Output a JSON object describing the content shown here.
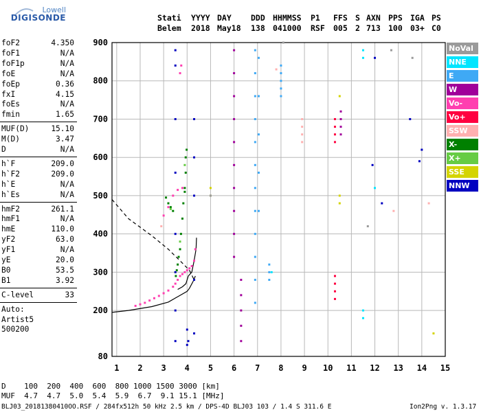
{
  "logo": {
    "top": "Lowell",
    "main": "DIGISONDE"
  },
  "header": {
    "labels": [
      "Stati",
      "YYYY",
      "DAY",
      "DDD",
      "HHMMSS",
      "P1",
      "FFS",
      "S",
      "AXN",
      "PPS",
      "IGA",
      "PS"
    ],
    "values": [
      "Belem",
      "2018",
      "May18",
      "138",
      "041000",
      "RSF",
      "005",
      "2",
      "713",
      "100",
      "03+",
      "C0"
    ]
  },
  "params": {
    "group1": [
      {
        "name": "foF2",
        "value": "4.350"
      },
      {
        "name": "foF1",
        "value": "N/A"
      },
      {
        "name": "foF1p",
        "value": "N/A"
      },
      {
        "name": "foE",
        "value": "N/A"
      },
      {
        "name": "foEp",
        "value": "0.36"
      },
      {
        "name": "fxI",
        "value": "4.15"
      },
      {
        "name": "foEs",
        "value": "N/A"
      },
      {
        "name": "fmin",
        "value": "1.65"
      }
    ],
    "group2": [
      {
        "name": "MUF(D)",
        "value": "15.10"
      },
      {
        "name": "M(D)",
        "value": "3.47"
      },
      {
        "name": "D",
        "value": "N/A"
      }
    ],
    "group3": [
      {
        "name": "h`F",
        "value": "209.0"
      },
      {
        "name": "h`F2",
        "value": "209.0"
      },
      {
        "name": "h`E",
        "value": "N/A"
      },
      {
        "name": "h`Es",
        "value": "N/A"
      }
    ],
    "group4": [
      {
        "name": "hmF2",
        "value": "261.1"
      },
      {
        "name": "hmF1",
        "value": "N/A"
      },
      {
        "name": "hmE",
        "value": "110.0"
      },
      {
        "name": "yF2",
        "value": "63.0"
      },
      {
        "name": "yF1",
        "value": "N/A"
      },
      {
        "name": "yE",
        "value": "20.0"
      },
      {
        "name": "B0",
        "value": "53.5"
      },
      {
        "name": "B1",
        "value": "3.92"
      }
    ],
    "clevel": {
      "name": "C-level",
      "value": "33"
    },
    "auto": [
      "Auto:",
      "Artist5",
      "500200"
    ]
  },
  "legend": [
    {
      "label": "NoVal",
      "color": "#9a9a9a"
    },
    {
      "label": "NNE",
      "color": "#00e5ff"
    },
    {
      "label": "E",
      "color": "#3fa9f5"
    },
    {
      "label": "W",
      "color": "#a0009a"
    },
    {
      "label": "Vo-",
      "color": "#ff3fb0"
    },
    {
      "label": "Vo+",
      "color": "#ff0040"
    },
    {
      "label": "SSW",
      "color": "#ffb0b0"
    },
    {
      "label": "X-",
      "color": "#008000"
    },
    {
      "label": "X+",
      "color": "#66cc44"
    },
    {
      "label": "SSE",
      "color": "#d4d400"
    },
    {
      "label": "NNW",
      "color": "#0000c0"
    }
  ],
  "footer": {
    "d_row": "D    100  200  400  600  800 1000 1500 3000 [km]",
    "muf_row": "MUF  4.7  4.7  5.0  5.4  5.9  6.7  9.1 15.1 [MHz]",
    "info": "BLJ03_20181380410OO.RSF / 284fx512h 50 kHz 2.5 km / DPS-4D BLJ03 103 / 1.4 S 311.6 E",
    "version": "Ion2Png v. 1.3.17"
  },
  "chart_data": {
    "type": "scatter",
    "x_ticks": [
      "1",
      "2",
      "3",
      "4",
      "5",
      "6",
      "7",
      "8",
      "9",
      "10",
      "11",
      "12",
      "13",
      "14",
      "15"
    ],
    "y_ticks": [
      "80",
      "200",
      "300",
      "400",
      "500",
      "600",
      "700",
      "800",
      "900"
    ],
    "xlim": [
      0.8,
      15.0
    ],
    "ylim": [
      80,
      900
    ],
    "grid": true,
    "legend_placement": "right",
    "series": [
      {
        "name": "X-",
        "color": "#008000",
        "x": [
          3.52,
          3.56,
          3.6,
          3.64,
          3.7,
          3.74,
          3.8,
          3.84,
          3.9,
          3.94,
          3.94,
          3.98,
          3.4,
          3.3,
          3.2,
          3.1,
          3.9
        ],
        "y": [
          290,
          305,
          320,
          340,
          360,
          400,
          440,
          480,
          520,
          560,
          600,
          620,
          460,
          470,
          480,
          495,
          510
        ]
      },
      {
        "name": "X+",
        "color": "#66cc44",
        "x": [
          3.5,
          3.7,
          3.9,
          3.3
        ],
        "y": [
          300,
          380,
          580,
          465
        ]
      },
      {
        "name": "Vo-",
        "color": "#ff3fb0",
        "x": [
          1.8,
          2.0,
          2.2,
          2.4,
          2.6,
          2.8,
          3.0,
          3.2,
          3.4,
          3.5,
          3.6,
          3.7,
          3.8,
          3.9,
          4.0,
          4.1,
          4.2,
          4.3,
          4.35,
          3.0,
          3.2,
          3.4,
          3.6,
          3.8,
          3.75,
          3.7
        ],
        "y": [
          212,
          216,
          220,
          226,
          232,
          238,
          245,
          252,
          262,
          270,
          280,
          290,
          295,
          300,
          305,
          310,
          316,
          330,
          360,
          448,
          470,
          500,
          515,
          520,
          840,
          820
        ]
      },
      {
        "name": "Vo+",
        "color": "#ff0040",
        "x": [
          10.3,
          10.3,
          10.3,
          10.3,
          10.3,
          10.3,
          10.3,
          10.3
        ],
        "y": [
          230,
          250,
          270,
          290,
          640,
          660,
          680,
          700
        ]
      },
      {
        "name": "W",
        "color": "#a0009a",
        "x": [
          6.0,
          6.0,
          6.0,
          6.0,
          6.0,
          6.0,
          6.0,
          6.0,
          6.0,
          6.0,
          6.3,
          6.3,
          6.3,
          6.3,
          6.3,
          10.55,
          10.55,
          10.55,
          10.55
        ],
        "y": [
          880,
          820,
          760,
          700,
          640,
          580,
          520,
          460,
          400,
          340,
          280,
          240,
          200,
          160,
          120,
          660,
          680,
          700,
          720
        ]
      },
      {
        "name": "E",
        "color": "#3fa9f5",
        "x": [
          6.9,
          6.9,
          6.9,
          6.9,
          6.9,
          6.9,
          6.9,
          6.9,
          6.9,
          6.9,
          6.9,
          6.9,
          7.05,
          7.05,
          7.05,
          7.05,
          7.05,
          7.5,
          7.5,
          7.5,
          8.0,
          8.0,
          8.0,
          8.0,
          8.0
        ],
        "y": [
          880,
          820,
          760,
          700,
          640,
          580,
          520,
          460,
          400,
          340,
          280,
          220,
          860,
          760,
          660,
          560,
          460,
          280,
          300,
          320,
          760,
          780,
          800,
          820,
          840
        ]
      },
      {
        "name": "NNE",
        "color": "#00e5ff",
        "x": [
          11.5,
          11.5,
          11.5,
          11.5,
          7.6,
          12.0
        ],
        "y": [
          860,
          880,
          200,
          180,
          300,
          520
        ]
      },
      {
        "name": "SSW",
        "color": "#ffb0b0",
        "x": [
          8.9,
          8.9,
          8.9,
          8.9,
          12.8,
          14.3,
          7.8,
          2.9
        ],
        "y": [
          640,
          660,
          680,
          700,
          460,
          480,
          830,
          420
        ]
      },
      {
        "name": "SSE",
        "color": "#d4d400",
        "x": [
          10.5,
          10.5,
          10.5,
          5.0,
          5.0,
          14.5
        ],
        "y": [
          480,
          500,
          760,
          520,
          500,
          140
        ]
      },
      {
        "name": "NNW",
        "color": "#0000c0",
        "x": [
          3.5,
          3.5,
          3.5,
          3.5,
          3.5,
          3.5,
          3.5,
          3.5,
          4.3,
          4.3,
          4.3,
          4.3,
          4.3,
          4.0,
          4.0,
          4.05,
          12.0,
          12.3,
          11.9,
          13.5,
          13.9,
          14.0
        ],
        "y": [
          880,
          840,
          700,
          560,
          400,
          300,
          200,
          120,
          700,
          600,
          500,
          280,
          140,
          150,
          110,
          120,
          860,
          480,
          580,
          700,
          590,
          620
        ]
      },
      {
        "name": "NoVal",
        "color": "#9a9a9a",
        "x": [
          5.0,
          8.1,
          11.7,
          12.7,
          13.6
        ],
        "y": [
          500,
          900,
          420,
          880,
          860
        ]
      }
    ],
    "curves": [
      {
        "name": "profile-solid",
        "style": "solid",
        "x": [
          0.8,
          1.5,
          2.5,
          3.2,
          3.6,
          4.0,
          4.1,
          4.25,
          4.35
        ],
        "y": [
          195,
          200,
          210,
          222,
          236,
          250,
          258,
          275,
          290
        ]
      },
      {
        "name": "profile-solid-2",
        "style": "solid",
        "x": [
          3.6,
          3.8,
          3.95,
          4.05,
          4.2,
          4.3,
          4.38,
          4.4
        ],
        "y": [
          255,
          262,
          270,
          290,
          300,
          330,
          360,
          390
        ]
      },
      {
        "name": "profile-dashed",
        "style": "dashed",
        "x": [
          0.8,
          1.5,
          2.5,
          3.2,
          3.7,
          4.1,
          4.3
        ],
        "y": [
          490,
          440,
          395,
          360,
          330,
          305,
          280
        ]
      }
    ]
  }
}
